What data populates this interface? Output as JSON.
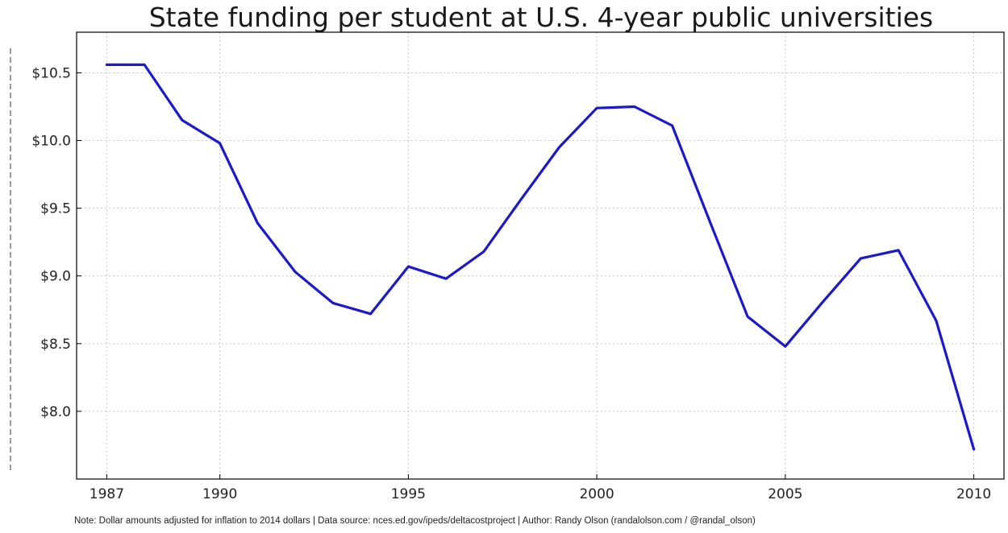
{
  "chart_data": {
    "type": "line",
    "title": "State funding per student at U.S. 4-year public universities",
    "xlabel": "",
    "ylabel": "",
    "xlim": [
      1986.2,
      2010.8
    ],
    "ylim": [
      7.5,
      10.8
    ],
    "x_ticks": [
      1987,
      1990,
      1995,
      2000,
      2005,
      2010
    ],
    "y_ticks": [
      {
        "value": 8.0,
        "label": "$8.0"
      },
      {
        "value": 8.5,
        "label": "$8.5"
      },
      {
        "value": 9.0,
        "label": "$9.0"
      },
      {
        "value": 9.5,
        "label": "$9.5"
      },
      {
        "value": 10.0,
        "label": "$10.0"
      },
      {
        "value": 10.5,
        "label": "$10.5"
      }
    ],
    "grid": true,
    "series": [
      {
        "color": "#1a1acc",
        "x": [
          1987,
          1988,
          1989,
          1990,
          1991,
          1992,
          1993,
          1994,
          1995,
          1996,
          1997,
          1998,
          1999,
          2000,
          2001,
          2002,
          2003,
          2004,
          2005,
          2006,
          2007,
          2008,
          2009,
          2010
        ],
        "y": [
          10.56,
          10.56,
          10.15,
          9.98,
          9.39,
          9.03,
          8.8,
          8.72,
          9.07,
          8.98,
          9.18,
          9.57,
          9.95,
          10.24,
          10.25,
          10.11,
          9.4,
          8.7,
          8.48,
          8.81,
          9.13,
          9.19,
          8.67,
          7.72
        ]
      }
    ],
    "note": "Note: Dollar amounts adjusted for inflation to 2014 dollars | Data source: nces.ed.gov/ipeds/deltacostproject | Author: Randy Olson (randalolson.com / @randal_olson)"
  }
}
